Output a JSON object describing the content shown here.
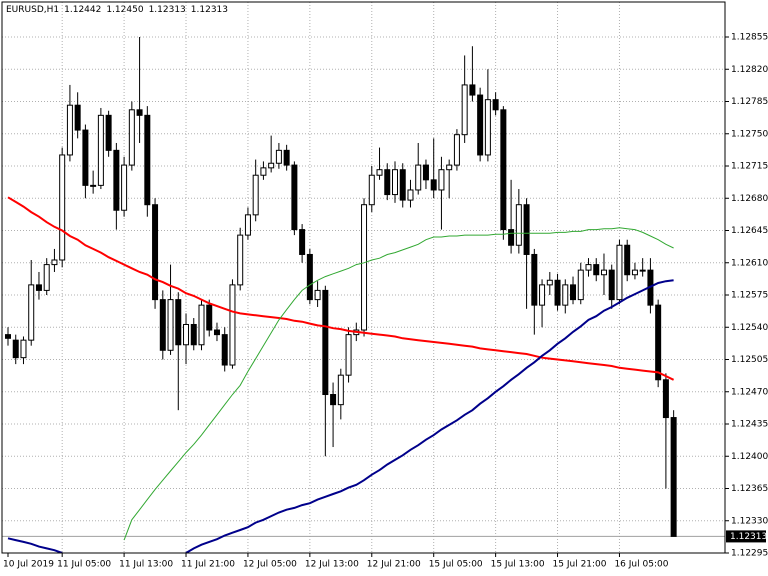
{
  "chart_data": {
    "type": "candlestick",
    "title": "EURUSD,H1",
    "header_values": [
      "1.12442",
      "1.12450",
      "1.12313",
      "1.12313"
    ],
    "categories": [
      "10 Jul 2019",
      null,
      null,
      null,
      null,
      null,
      null,
      "11 Jul 05:00",
      null,
      null,
      null,
      null,
      null,
      null,
      null,
      "11 Jul 13:00",
      null,
      null,
      null,
      null,
      null,
      null,
      null,
      "11 Jul 21:00",
      null,
      null,
      null,
      null,
      null,
      null,
      null,
      "12 Jul 05:00",
      null,
      null,
      null,
      null,
      null,
      null,
      null,
      "12 Jul 13:00",
      null,
      null,
      null,
      null,
      null,
      null,
      null,
      "12 Jul 21:00",
      null,
      null,
      null,
      null,
      null,
      null,
      null,
      "15 Jul 05:00",
      null,
      null,
      null,
      null,
      null,
      null,
      null,
      "15 Jul 13:00",
      null,
      null,
      null,
      null,
      null,
      null,
      null,
      "15 Jul 21:00",
      null,
      null,
      null,
      null,
      null,
      null,
      null,
      "16 Jul 05:00",
      null,
      null,
      null,
      null,
      null,
      null,
      null
    ],
    "open": [
      1.12532,
      1.12526,
      1.12507,
      1.12526,
      1.12586,
      1.1258,
      1.12608,
      1.12613,
      1.12727,
      1.12781,
      1.12754,
      1.12694,
      1.12694,
      1.1277,
      1.12732,
      1.12667,
      1.12716,
      1.12776,
      1.1277,
      1.12673,
      1.1257,
      1.12515,
      1.1257,
      1.12521,
      1.12543,
      1.12521,
      1.12564,
      1.12537,
      1.12532,
      1.12499,
      1.12586,
      1.1264,
      1.12662,
      1.12705,
      1.12713,
      1.12718,
      1.12732,
      1.12716,
      1.12646,
      1.12619,
      1.1257,
      1.1258,
      1.12467,
      1.12456,
      1.12488,
      1.12532,
      1.12537,
      1.12673,
      1.12705,
      1.12711,
      1.12684,
      1.12711,
      1.12678,
      1.12689,
      1.12716,
      1.127,
      1.12689,
      1.12711,
      1.12716,
      1.12749,
      1.12803,
      1.12792,
      1.12727,
      1.12787,
      1.12776,
      1.12646,
      1.12629,
      1.12673,
      1.12619,
      1.12564,
      1.12586,
      1.12591,
      1.12564,
      1.12586,
      1.1257,
      1.12602,
      1.12608,
      1.12597,
      1.12602,
      1.1257,
      1.12629,
      1.12597,
      1.12602,
      1.12602,
      1.12564,
      1.12483,
      1.12442
    ],
    "high": [
      1.1254,
      1.12532,
      1.1253,
      1.12613,
      1.126,
      1.12615,
      1.12625,
      1.12735,
      1.12803,
      1.12795,
      1.1276,
      1.1271,
      1.12778,
      1.12775,
      1.1274,
      1.12725,
      1.12785,
      1.12855,
      1.1278,
      1.1268,
      1.1258,
      1.12608,
      1.12578,
      1.12555,
      1.1255,
      1.1257,
      1.1257,
      1.12545,
      1.1254,
      1.12592,
      1.12648,
      1.1267,
      1.12722,
      1.1272,
      1.12748,
      1.1274,
      1.12738,
      1.1272,
      1.12652,
      1.12625,
      1.1259,
      1.12585,
      1.1248,
      1.12495,
      1.1254,
      1.12545,
      1.1268,
      1.12715,
      1.12735,
      1.12718,
      1.1272,
      1.12718,
      1.127,
      1.1274,
      1.12722,
      1.12745,
      1.12725,
      1.12722,
      1.12755,
      1.12835,
      1.12845,
      1.128,
      1.1282,
      1.12795,
      1.1278,
      1.127,
      1.1269,
      1.1268,
      1.12625,
      1.12592,
      1.126,
      1.12598,
      1.12592,
      1.12595,
      1.1261,
      1.12615,
      1.12615,
      1.1262,
      1.12608,
      1.12635,
      1.12635,
      1.1261,
      1.12615,
      1.12615,
      1.1257,
      1.1249,
      1.1245
    ],
    "low": [
      1.1252,
      1.125,
      1.125,
      1.1252,
      1.1257,
      1.12575,
      1.126,
      1.12605,
      1.1272,
      1.12745,
      1.1268,
      1.12685,
      1.1269,
      1.12725,
      1.12646,
      1.1266,
      1.1271,
      1.1274,
      1.1266,
      1.1256,
      1.12505,
      1.1251,
      1.1245,
      1.125,
      1.12515,
      1.12515,
      1.1253,
      1.12525,
      1.12492,
      1.12495,
      1.1258,
      1.12635,
      1.12655,
      1.127,
      1.12708,
      1.12712,
      1.1271,
      1.1264,
      1.1261,
      1.12565,
      1.12562,
      1.124,
      1.1241,
      1.1244,
      1.1248,
      1.12525,
      1.1253,
      1.12665,
      1.127,
      1.12678,
      1.12675,
      1.1267,
      1.1267,
      1.12684,
      1.1269,
      1.1268,
      1.12646,
      1.1268,
      1.1271,
      1.1274,
      1.12785,
      1.1272,
      1.1272,
      1.1277,
      1.12635,
      1.1262,
      1.1262,
      1.1256,
      1.12532,
      1.1254,
      1.12575,
      1.12558,
      1.12555,
      1.12565,
      1.12565,
      1.12595,
      1.1259,
      1.12575,
      1.1256,
      1.12565,
      1.1259,
      1.12592,
      1.12595,
      1.12555,
      1.12475,
      1.12365,
      1.12313
    ],
    "close": [
      1.12528,
      1.12507,
      1.12526,
      1.12586,
      1.1258,
      1.12608,
      1.12613,
      1.12727,
      1.12781,
      1.12754,
      1.12694,
      1.12694,
      1.1277,
      1.12732,
      1.12667,
      1.12716,
      1.12776,
      1.1277,
      1.12673,
      1.1257,
      1.12515,
      1.1257,
      1.12521,
      1.12543,
      1.12521,
      1.12564,
      1.12537,
      1.12532,
      1.12499,
      1.12586,
      1.1264,
      1.12662,
      1.12705,
      1.12713,
      1.12718,
      1.12732,
      1.12716,
      1.12646,
      1.12619,
      1.1257,
      1.1258,
      1.12467,
      1.12456,
      1.12488,
      1.12532,
      1.12537,
      1.12673,
      1.12705,
      1.12711,
      1.12684,
      1.12711,
      1.12678,
      1.12689,
      1.12716,
      1.127,
      1.12689,
      1.12711,
      1.12716,
      1.12749,
      1.12803,
      1.12792,
      1.12727,
      1.12787,
      1.12776,
      1.12646,
      1.12629,
      1.12673,
      1.12619,
      1.12564,
      1.12586,
      1.12591,
      1.12564,
      1.12586,
      1.1257,
      1.12602,
      1.12608,
      1.12597,
      1.12602,
      1.1257,
      1.12629,
      1.12597,
      1.12602,
      1.12602,
      1.12564,
      1.12483,
      1.12442,
      1.12313
    ],
    "series": [
      {
        "color": "#ff0000",
        "width": 2,
        "values": [
          1.12681,
          1.12676,
          1.12671,
          1.12665,
          1.1266,
          1.12654,
          1.12649,
          1.12645,
          1.12639,
          1.12635,
          1.12629,
          1.12625,
          1.12621,
          1.12616,
          1.12612,
          1.12608,
          1.12604,
          1.126,
          1.12597,
          1.12592,
          1.12589,
          1.12585,
          1.12582,
          1.12577,
          1.12574,
          1.1257,
          1.12566,
          1.12563,
          1.1256,
          1.12557,
          1.12555,
          1.12554,
          1.12553,
          1.12552,
          1.12551,
          1.1255,
          1.12549,
          1.12547,
          1.12546,
          1.12544,
          1.12542,
          1.12541,
          1.12539,
          1.12538,
          1.12536,
          1.12535,
          1.12534,
          1.12533,
          1.12532,
          1.12531,
          1.1253,
          1.12528,
          1.12527,
          1.12526,
          1.12525,
          1.12524,
          1.12523,
          1.12522,
          1.12521,
          1.1252,
          1.12519,
          1.12517,
          1.12516,
          1.12515,
          1.12514,
          1.12513,
          1.12512,
          1.12511,
          1.12509,
          1.12507,
          1.12506,
          1.12505,
          1.12504,
          1.12503,
          1.12502,
          1.12501,
          1.125,
          1.12499,
          1.12498,
          1.12496,
          1.12495,
          1.12494,
          1.12493,
          1.12492,
          1.12491,
          1.12487,
          1.12483
        ]
      },
      {
        "color": "#00008b",
        "width": 2,
        "values": [
          1.12311,
          1.12309,
          1.12307,
          1.12305,
          1.12302,
          1.123,
          1.12298,
          1.12295,
          null,
          null,
          null,
          null,
          null,
          null,
          null,
          null,
          null,
          null,
          null,
          null,
          null,
          null,
          null,
          1.12295,
          1.123,
          1.12304,
          1.12307,
          1.1231,
          1.12314,
          1.12317,
          1.1232,
          1.12323,
          1.12328,
          1.12331,
          1.12335,
          1.12339,
          1.12342,
          1.12344,
          1.12347,
          1.12349,
          1.12353,
          1.12356,
          1.12359,
          1.12362,
          1.12366,
          1.12369,
          1.12374,
          1.1238,
          1.12385,
          1.12391,
          1.12396,
          1.12401,
          1.12407,
          1.12412,
          1.12418,
          1.12423,
          1.12429,
          1.12434,
          1.12439,
          1.12445,
          1.1245,
          1.12457,
          1.12463,
          1.1247,
          1.12476,
          1.12483,
          1.12489,
          1.12496,
          1.12502,
          1.12509,
          1.12515,
          1.12522,
          1.12528,
          1.12535,
          1.12541,
          1.12548,
          1.12552,
          1.12558,
          1.12562,
          1.12567,
          1.12572,
          1.12576,
          1.1258,
          1.12584,
          1.12588,
          1.1259,
          1.12591
        ]
      },
      {
        "color": "#32a832",
        "width": 1,
        "values": [
          null,
          null,
          null,
          null,
          null,
          null,
          null,
          null,
          null,
          null,
          null,
          null,
          null,
          null,
          null,
          1.12309,
          1.12331,
          1.12342,
          1.12353,
          1.12364,
          1.12374,
          1.12384,
          1.12394,
          1.12404,
          1.12413,
          1.12423,
          1.12434,
          1.12445,
          1.12456,
          1.12467,
          1.12477,
          1.12492,
          1.12506,
          1.1252,
          1.12534,
          1.12548,
          1.12559,
          1.1257,
          1.1258,
          1.12586,
          1.12591,
          1.12595,
          1.12598,
          1.12601,
          1.12604,
          1.12608,
          1.1261,
          1.12613,
          1.12615,
          1.12619,
          1.12621,
          1.12624,
          1.12627,
          1.1263,
          1.12635,
          1.12638,
          1.12638,
          1.12639,
          1.12639,
          1.1264,
          1.1264,
          1.1264,
          1.1264,
          1.12641,
          1.12641,
          1.12642,
          1.12642,
          1.12642,
          1.12642,
          1.12642,
          1.12642,
          1.12643,
          1.12643,
          1.12644,
          1.12644,
          1.12646,
          1.12646,
          1.12647,
          1.12647,
          1.12648,
          1.12647,
          1.12646,
          1.12643,
          1.12639,
          1.12635,
          1.1263,
          1.12626
        ]
      }
    ],
    "bull_color": "#ffffff",
    "bear_color": "#000000",
    "ylim": [
      1.12295,
      1.12893
    ],
    "yticks": [
      1.12295,
      {
        "value": 1.1233,
        "label": "1.12330"
      },
      1.12365,
      {
        "value": 1.124,
        "label": "1.12400"
      },
      1.12435,
      {
        "value": 1.1247,
        "label": "1.12470"
      },
      1.12505,
      {
        "value": 1.1254,
        "label": "1.12540"
      },
      1.12575,
      {
        "value": 1.1261,
        "label": "1.12610"
      },
      1.12645,
      {
        "value": 1.1268,
        "label": "1.12680"
      },
      1.12715,
      {
        "value": 1.1275,
        "label": "1.12750"
      },
      1.12785,
      {
        "value": 1.1282,
        "label": "1.12820"
      },
      1.12855
    ],
    "current_price": {
      "value": 1.12313,
      "label": "1.12313"
    },
    "grid": true
  }
}
